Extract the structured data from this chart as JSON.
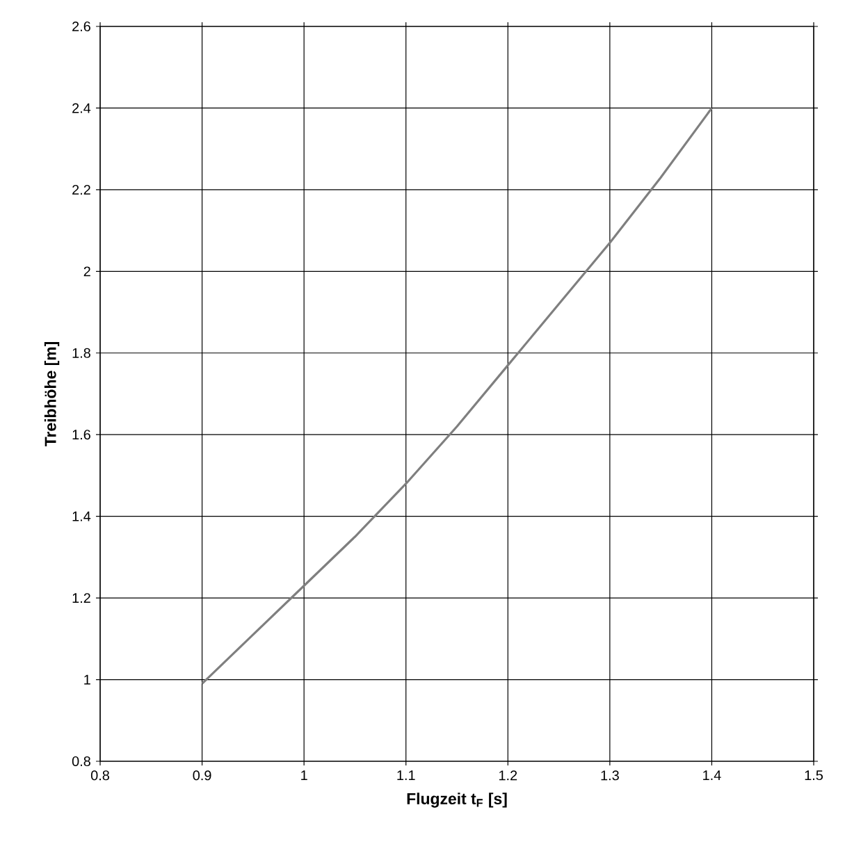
{
  "chart_data": {
    "type": "line",
    "xlabel": "Flugzeit t$_{F}$ [s]",
    "ylabel": "Treibhöhe [m]",
    "x": [
      0.9,
      0.95,
      1.0,
      1.05,
      1.1,
      1.15,
      1.2,
      1.25,
      1.3,
      1.35,
      1.4
    ],
    "series": [
      {
        "color": "#7f7f7f",
        "values": [
          0.99,
          1.11,
          1.23,
          1.35,
          1.48,
          1.62,
          1.77,
          1.92,
          2.07,
          2.23,
          2.4
        ]
      }
    ],
    "xlim": [
      0.8,
      1.5
    ],
    "ylim": [
      0.8,
      2.6
    ],
    "xticks": [
      0.8,
      0.9,
      1,
      1.1,
      1.2,
      1.3,
      1.4,
      1.5
    ],
    "yticks": [
      0.8,
      1,
      1.2,
      1.4,
      1.6,
      1.8,
      2,
      2.2,
      2.4,
      2.6
    ],
    "grid": true
  }
}
